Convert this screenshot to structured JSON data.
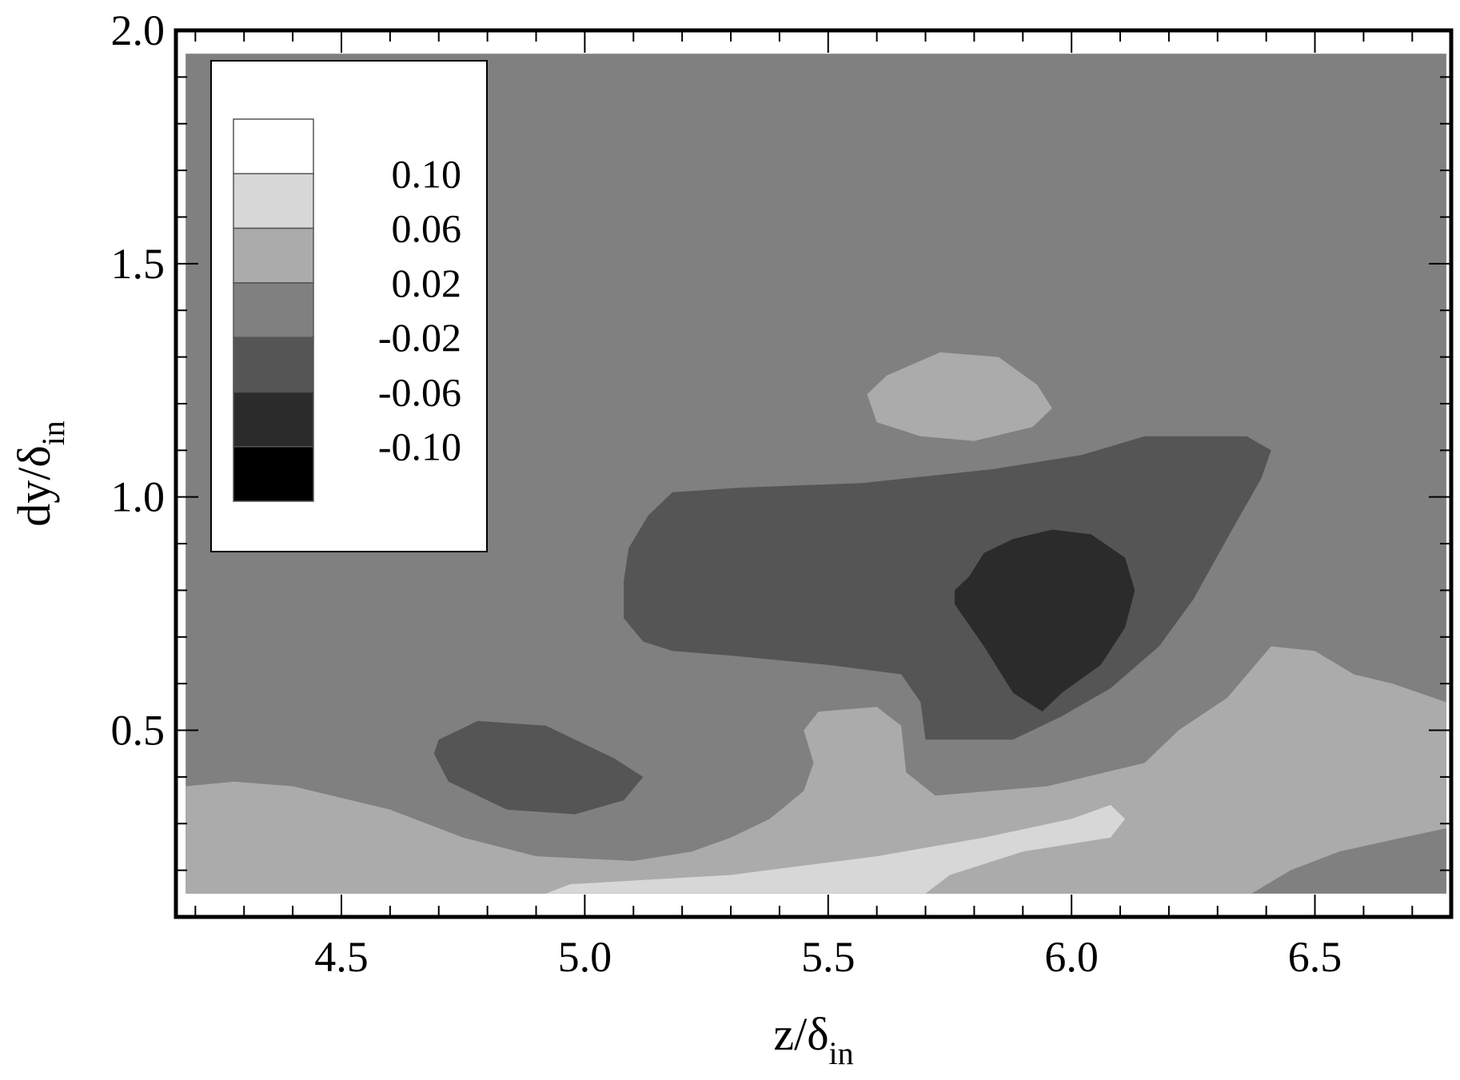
{
  "chart_data": {
    "type": "contour",
    "xlabel": {
      "base": "z/δ",
      "sub": "in"
    },
    "ylabel": {
      "base": "dy/δ",
      "sub": "in"
    },
    "xlim": [
      4.16,
      6.78
    ],
    "ylim": [
      0.1,
      2.0
    ],
    "xticks": [
      "4.5",
      "5.0",
      "5.5",
      "6.0",
      "6.5"
    ],
    "xtick_values": [
      4.5,
      5.0,
      5.5,
      6.0,
      6.5
    ],
    "yticks": [
      "0.5",
      "1.0",
      "1.5",
      "2.0"
    ],
    "ytick_values": [
      0.5,
      1.0,
      1.5,
      2.0
    ],
    "x_minor_step": 0.1,
    "y_minor_step": 0.1,
    "data_extent": {
      "x": [
        4.18,
        6.77
      ],
      "y": [
        0.15,
        1.95
      ]
    },
    "legend": {
      "position": "top-left",
      "labels": [
        "0.10",
        "0.06",
        "0.02",
        "-0.02",
        "-0.06",
        "-0.10"
      ],
      "bands": [
        {
          "range": "> 0.10",
          "color": "#ffffff"
        },
        {
          "range": "0.06 – 0.10",
          "color": "#d7d7d7"
        },
        {
          "range": "0.02 – 0.06",
          "color": "#ababab"
        },
        {
          "range": "-0.02 – 0.02",
          "color": "#808080"
        },
        {
          "range": "-0.06 – -0.02",
          "color": "#555555"
        },
        {
          "range": "-0.10 – -0.06",
          "color": "#2b2b2b"
        },
        {
          "range": "< -0.10",
          "color": "#000000"
        }
      ]
    },
    "background_level_color": "#808080",
    "regions": [
      {
        "name": "bottom-band-positive",
        "color": "#ababab",
        "points": [
          [
            4.18,
            0.38
          ],
          [
            4.28,
            0.39
          ],
          [
            4.4,
            0.38
          ],
          [
            4.6,
            0.33
          ],
          [
            4.75,
            0.27
          ],
          [
            4.9,
            0.23
          ],
          [
            5.1,
            0.22
          ],
          [
            5.22,
            0.24
          ],
          [
            5.3,
            0.27
          ],
          [
            5.38,
            0.31
          ],
          [
            5.45,
            0.37
          ],
          [
            5.47,
            0.43
          ],
          [
            5.45,
            0.5
          ],
          [
            5.48,
            0.54
          ],
          [
            5.6,
            0.55
          ],
          [
            5.65,
            0.51
          ],
          [
            5.66,
            0.41
          ],
          [
            5.72,
            0.36
          ],
          [
            5.95,
            0.38
          ],
          [
            6.15,
            0.43
          ],
          [
            6.22,
            0.5
          ],
          [
            6.32,
            0.57
          ],
          [
            6.41,
            0.68
          ],
          [
            6.5,
            0.67
          ],
          [
            6.58,
            0.62
          ],
          [
            6.66,
            0.6
          ],
          [
            6.77,
            0.56
          ],
          [
            6.77,
            0.15
          ],
          [
            4.18,
            0.15
          ]
        ]
      },
      {
        "name": "bottom-band-high",
        "color": "#d7d7d7",
        "points": [
          [
            4.92,
            0.15
          ],
          [
            4.97,
            0.17
          ],
          [
            5.3,
            0.19
          ],
          [
            5.6,
            0.23
          ],
          [
            5.82,
            0.27
          ],
          [
            6.0,
            0.31
          ],
          [
            6.08,
            0.34
          ],
          [
            6.11,
            0.31
          ],
          [
            6.08,
            0.27
          ],
          [
            5.9,
            0.24
          ],
          [
            5.75,
            0.19
          ],
          [
            5.7,
            0.15
          ]
        ]
      },
      {
        "name": "bottom-right-low",
        "color": "#808080",
        "points": [
          [
            6.37,
            0.15
          ],
          [
            6.45,
            0.2
          ],
          [
            6.55,
            0.24
          ],
          [
            6.68,
            0.27
          ],
          [
            6.77,
            0.29
          ],
          [
            6.77,
            0.15
          ]
        ]
      },
      {
        "name": "upper-blob-positive",
        "color": "#ababab",
        "points": [
          [
            5.58,
            1.22
          ],
          [
            5.62,
            1.26
          ],
          [
            5.73,
            1.31
          ],
          [
            5.85,
            1.3
          ],
          [
            5.93,
            1.24
          ],
          [
            5.96,
            1.19
          ],
          [
            5.92,
            1.15
          ],
          [
            5.8,
            1.12
          ],
          [
            5.69,
            1.13
          ],
          [
            5.6,
            1.16
          ]
        ]
      },
      {
        "name": "left-blob-negative",
        "color": "#555555",
        "points": [
          [
            4.7,
            0.48
          ],
          [
            4.78,
            0.52
          ],
          [
            4.92,
            0.51
          ],
          [
            5.06,
            0.44
          ],
          [
            5.12,
            0.4
          ],
          [
            5.08,
            0.35
          ],
          [
            4.98,
            0.32
          ],
          [
            4.84,
            0.33
          ],
          [
            4.72,
            0.39
          ],
          [
            4.69,
            0.45
          ]
        ]
      },
      {
        "name": "central-region-negative",
        "color": "#555555",
        "points": [
          [
            5.09,
            0.89
          ],
          [
            5.13,
            0.96
          ],
          [
            5.18,
            1.01
          ],
          [
            5.32,
            1.02
          ],
          [
            5.57,
            1.03
          ],
          [
            5.84,
            1.06
          ],
          [
            6.02,
            1.09
          ],
          [
            6.15,
            1.13
          ],
          [
            6.36,
            1.13
          ],
          [
            6.41,
            1.1
          ],
          [
            6.39,
            1.04
          ],
          [
            6.33,
            0.93
          ],
          [
            6.25,
            0.78
          ],
          [
            6.18,
            0.68
          ],
          [
            6.08,
            0.59
          ],
          [
            5.98,
            0.53
          ],
          [
            5.88,
            0.48
          ],
          [
            5.7,
            0.48
          ],
          [
            5.69,
            0.56
          ],
          [
            5.65,
            0.62
          ],
          [
            5.5,
            0.64
          ],
          [
            5.3,
            0.66
          ],
          [
            5.18,
            0.67
          ],
          [
            5.12,
            0.69
          ],
          [
            5.08,
            0.74
          ],
          [
            5.08,
            0.82
          ]
        ]
      },
      {
        "name": "central-core-strong-negative",
        "color": "#2b2b2b",
        "points": [
          [
            5.79,
            0.83
          ],
          [
            5.82,
            0.88
          ],
          [
            5.88,
            0.91
          ],
          [
            5.96,
            0.93
          ],
          [
            6.04,
            0.92
          ],
          [
            6.11,
            0.87
          ],
          [
            6.13,
            0.8
          ],
          [
            6.11,
            0.72
          ],
          [
            6.06,
            0.64
          ],
          [
            5.98,
            0.58
          ],
          [
            5.94,
            0.54
          ],
          [
            5.88,
            0.58
          ],
          [
            5.82,
            0.68
          ],
          [
            5.76,
            0.77
          ],
          [
            5.76,
            0.8
          ]
        ]
      }
    ]
  }
}
